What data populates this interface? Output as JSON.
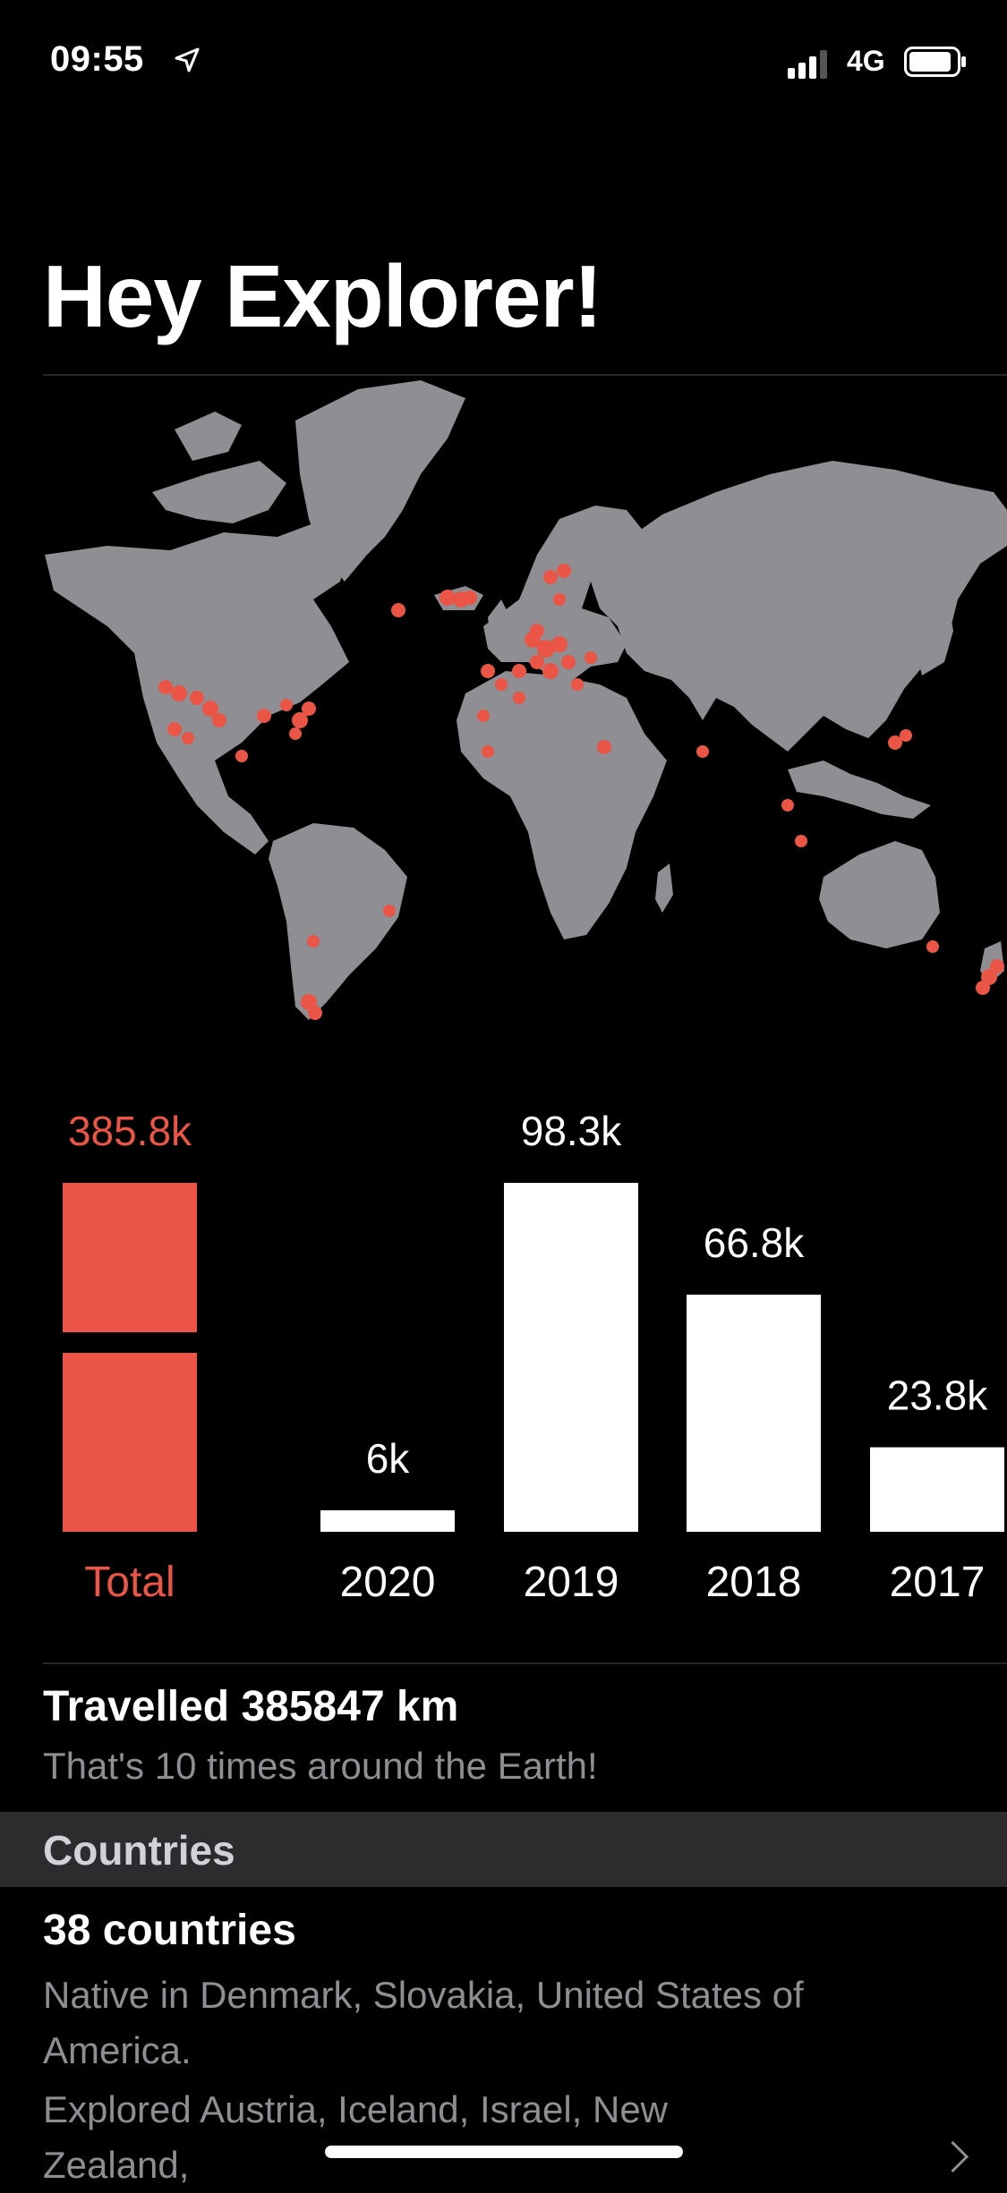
{
  "status_bar": {
    "time": "09:55",
    "network": "4G",
    "location_icon": "location-arrow-icon",
    "signal_icon": "cellular-signal-icon",
    "battery_icon": "battery-icon"
  },
  "page": {
    "title": "Hey Explorer!"
  },
  "colors": {
    "accent": "#eb5545",
    "background": "#000000",
    "land": "#8e8e93",
    "secondary_text": "#8e8e93",
    "section_band": "#2c2c2e"
  },
  "chart_data": {
    "type": "bar",
    "categories": [
      "Total",
      "2020",
      "2019",
      "2018",
      "2017"
    ],
    "values": [
      385.8,
      6,
      98.3,
      66.8,
      23.8
    ],
    "value_labels": [
      "385.8k",
      "6k",
      "98.3k",
      "66.8k",
      "23.8k"
    ],
    "unit": "k",
    "notes": "Total bar is drawn broken (accent red), yearly bars white; 2017 bar is partly off-screen at the right edge."
  },
  "travel": {
    "heading": "Travelled 385847 km",
    "subtext": "That's 10 times around the Earth!"
  },
  "countries": {
    "section_label": "Countries",
    "heading": "38 countries",
    "native_line1": "Native in Denmark, Slovakia, United States of",
    "native_line2": "America.",
    "explored_line1": "Explored Austria, Iceland, Israel, New",
    "explored_line2": "Zealand,"
  }
}
